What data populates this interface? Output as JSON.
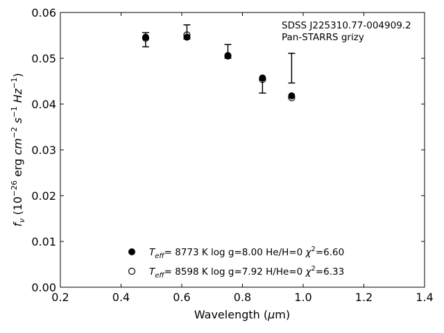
{
  "chart_data": {
    "type": "scatter",
    "annotations": [
      "SDSS J225310.77-004909.2",
      "Pan-STARRS grizy"
    ],
    "xlabel": {
      "main": "Wavelength (",
      "mu": "μ",
      "unit": "m)"
    },
    "ylabel": {
      "f": "f",
      "nu": "ν",
      "a": " (10",
      "e1": "−26",
      "b": " erg ",
      "cm": "cm",
      "e2": "−2",
      "s": " s",
      "e3": "−1",
      "hz": " Hz",
      "e4": "−1",
      "c": ")"
    },
    "xlim": [
      0.2,
      1.4
    ],
    "ylim": [
      0.0,
      0.06
    ],
    "xticks": [
      "0.2",
      "0.4",
      "0.6",
      "0.8",
      "1.0",
      "1.2",
      "1.4"
    ],
    "yticks": [
      "0.00",
      "0.01",
      "0.02",
      "0.03",
      "0.04",
      "0.05",
      "0.06"
    ],
    "observed": {
      "x": [
        0.481,
        0.617,
        0.752,
        0.866,
        0.962
      ],
      "y": [
        0.0545,
        0.0565,
        0.0515,
        0.045,
        0.0478
      ],
      "ylow": [
        0.0525,
        0.0542,
        0.05,
        0.0424,
        0.0446
      ],
      "yhigh": [
        0.0556,
        0.0573,
        0.053,
        0.0455,
        0.0511
      ]
    },
    "series": [
      {
        "marker": "filled",
        "x": [
          0.481,
          0.617,
          0.752,
          0.866,
          0.962
        ],
        "y": [
          0.0546,
          0.0546,
          0.0506,
          0.0457,
          0.0418
        ],
        "legend": {
          "t": "T",
          "sub": "eff",
          "rest": "=  8773 K  log g=8.00  He/H=0  ",
          "chi": "χ",
          "sup": "2",
          "val": "=6.60"
        }
      },
      {
        "marker": "open",
        "x": [
          0.481,
          0.617,
          0.752,
          0.866,
          0.962
        ],
        "y": [
          0.0544,
          0.0551,
          0.0505,
          0.0454,
          0.0414
        ],
        "legend": {
          "t": "T",
          "sub": "eff",
          "rest": "=  8598 K  log g=7.92  H/He=0  ",
          "chi": "χ",
          "sup": "2",
          "val": "=6.33"
        }
      }
    ],
    "legend_position": "lower-center",
    "grid": false
  }
}
